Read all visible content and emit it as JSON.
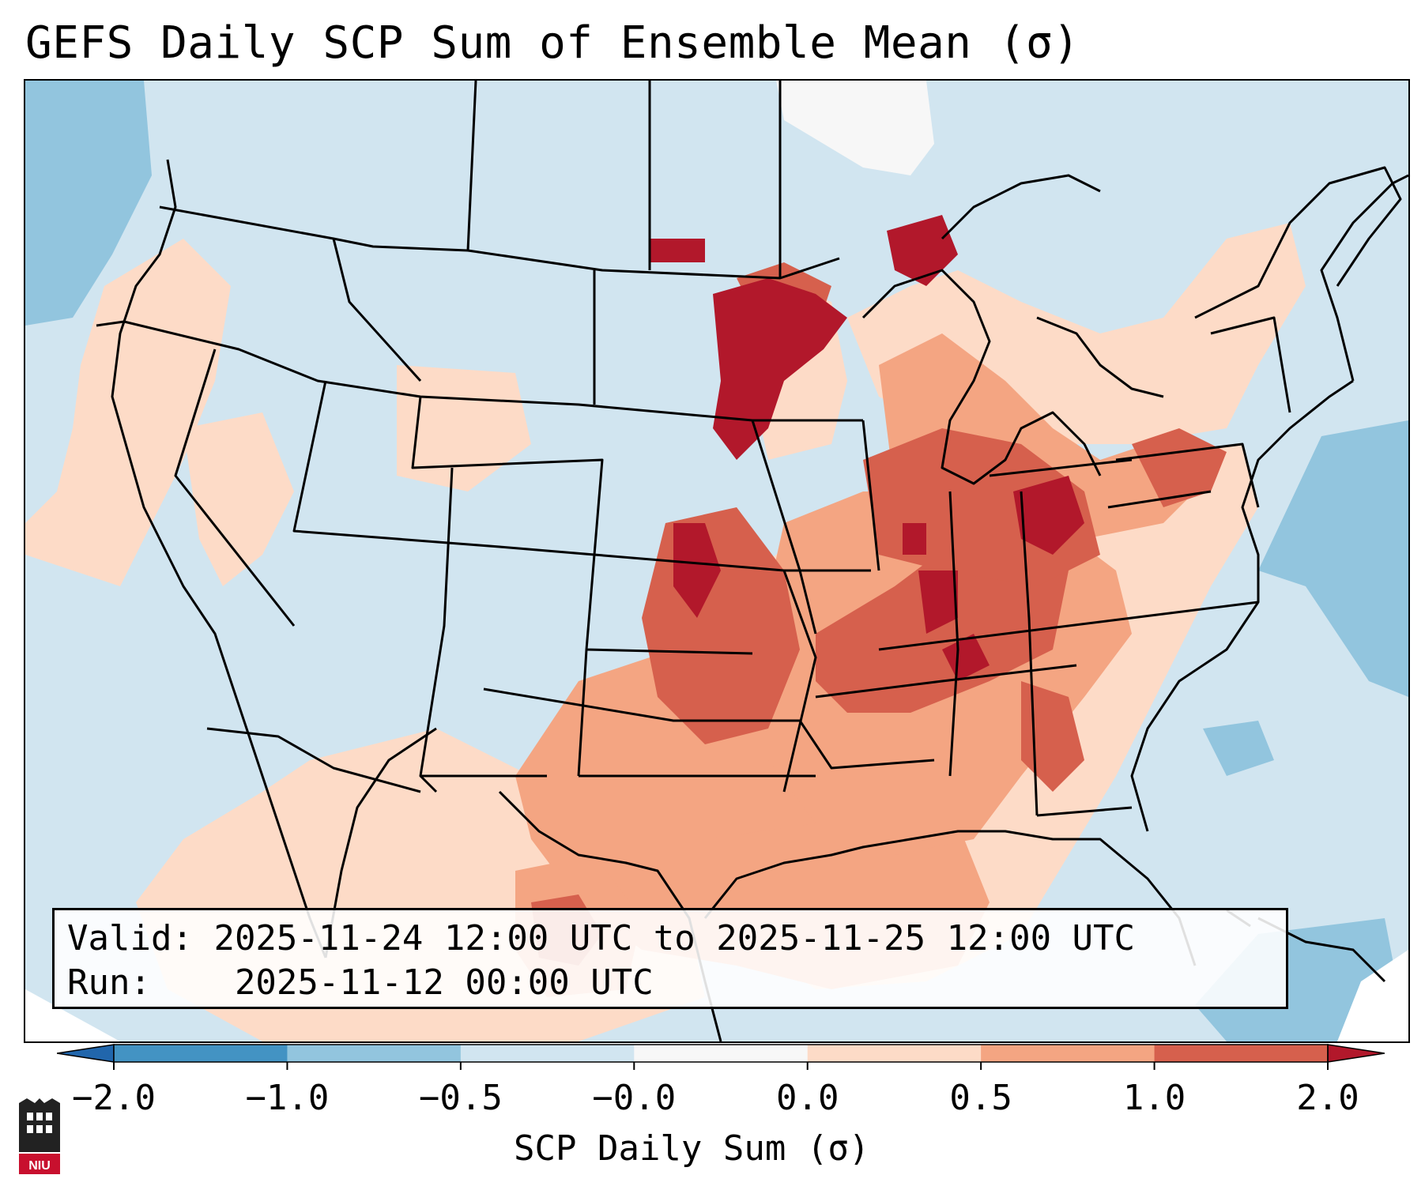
{
  "title": "GEFS Daily SCP Sum of Ensemble Mean (σ)",
  "info": {
    "valid_label": "Valid:",
    "valid_text": "2025-11-24 12:00 UTC to 2025-11-25 12:00 UTC",
    "run_label": "Run:",
    "run_text": "2025-11-12 00:00 UTC"
  },
  "colorbar": {
    "label": "SCP Daily Sum (σ)",
    "ticks": [
      "−2.0",
      "−1.0",
      "−0.5",
      "−0.0",
      "0.0",
      "0.5",
      "1.0",
      "2.0"
    ],
    "bins": [
      {
        "range": "< -2.0",
        "color": "#2166ac"
      },
      {
        "range": "-2.0 to -1.0",
        "color": "#4393c3"
      },
      {
        "range": "-1.0 to -0.5",
        "color": "#92c5de"
      },
      {
        "range": "-0.5 to -0.0",
        "color": "#d1e5f0"
      },
      {
        "range": "-0.0 to 0.0",
        "color": "#f7f7f7"
      },
      {
        "range": "0.0 to 0.5",
        "color": "#fddbc7"
      },
      {
        "range": "0.5 to 1.0",
        "color": "#f4a582"
      },
      {
        "range": "1.0 to 2.0",
        "color": "#d6604d"
      },
      {
        "range": "> 2.0",
        "color": "#b2182b"
      }
    ]
  },
  "map": {
    "region": "Contiguous United States",
    "variable": "SCP daily sum anomaly",
    "units": "σ",
    "highlight": "Largest anomalies (>1.0σ) over the Upper Midwest, Mid-South and Ohio Valley"
  },
  "logo": {
    "text": "NIU"
  },
  "colors": {
    "frame": "#000000",
    "text": "#000000"
  }
}
